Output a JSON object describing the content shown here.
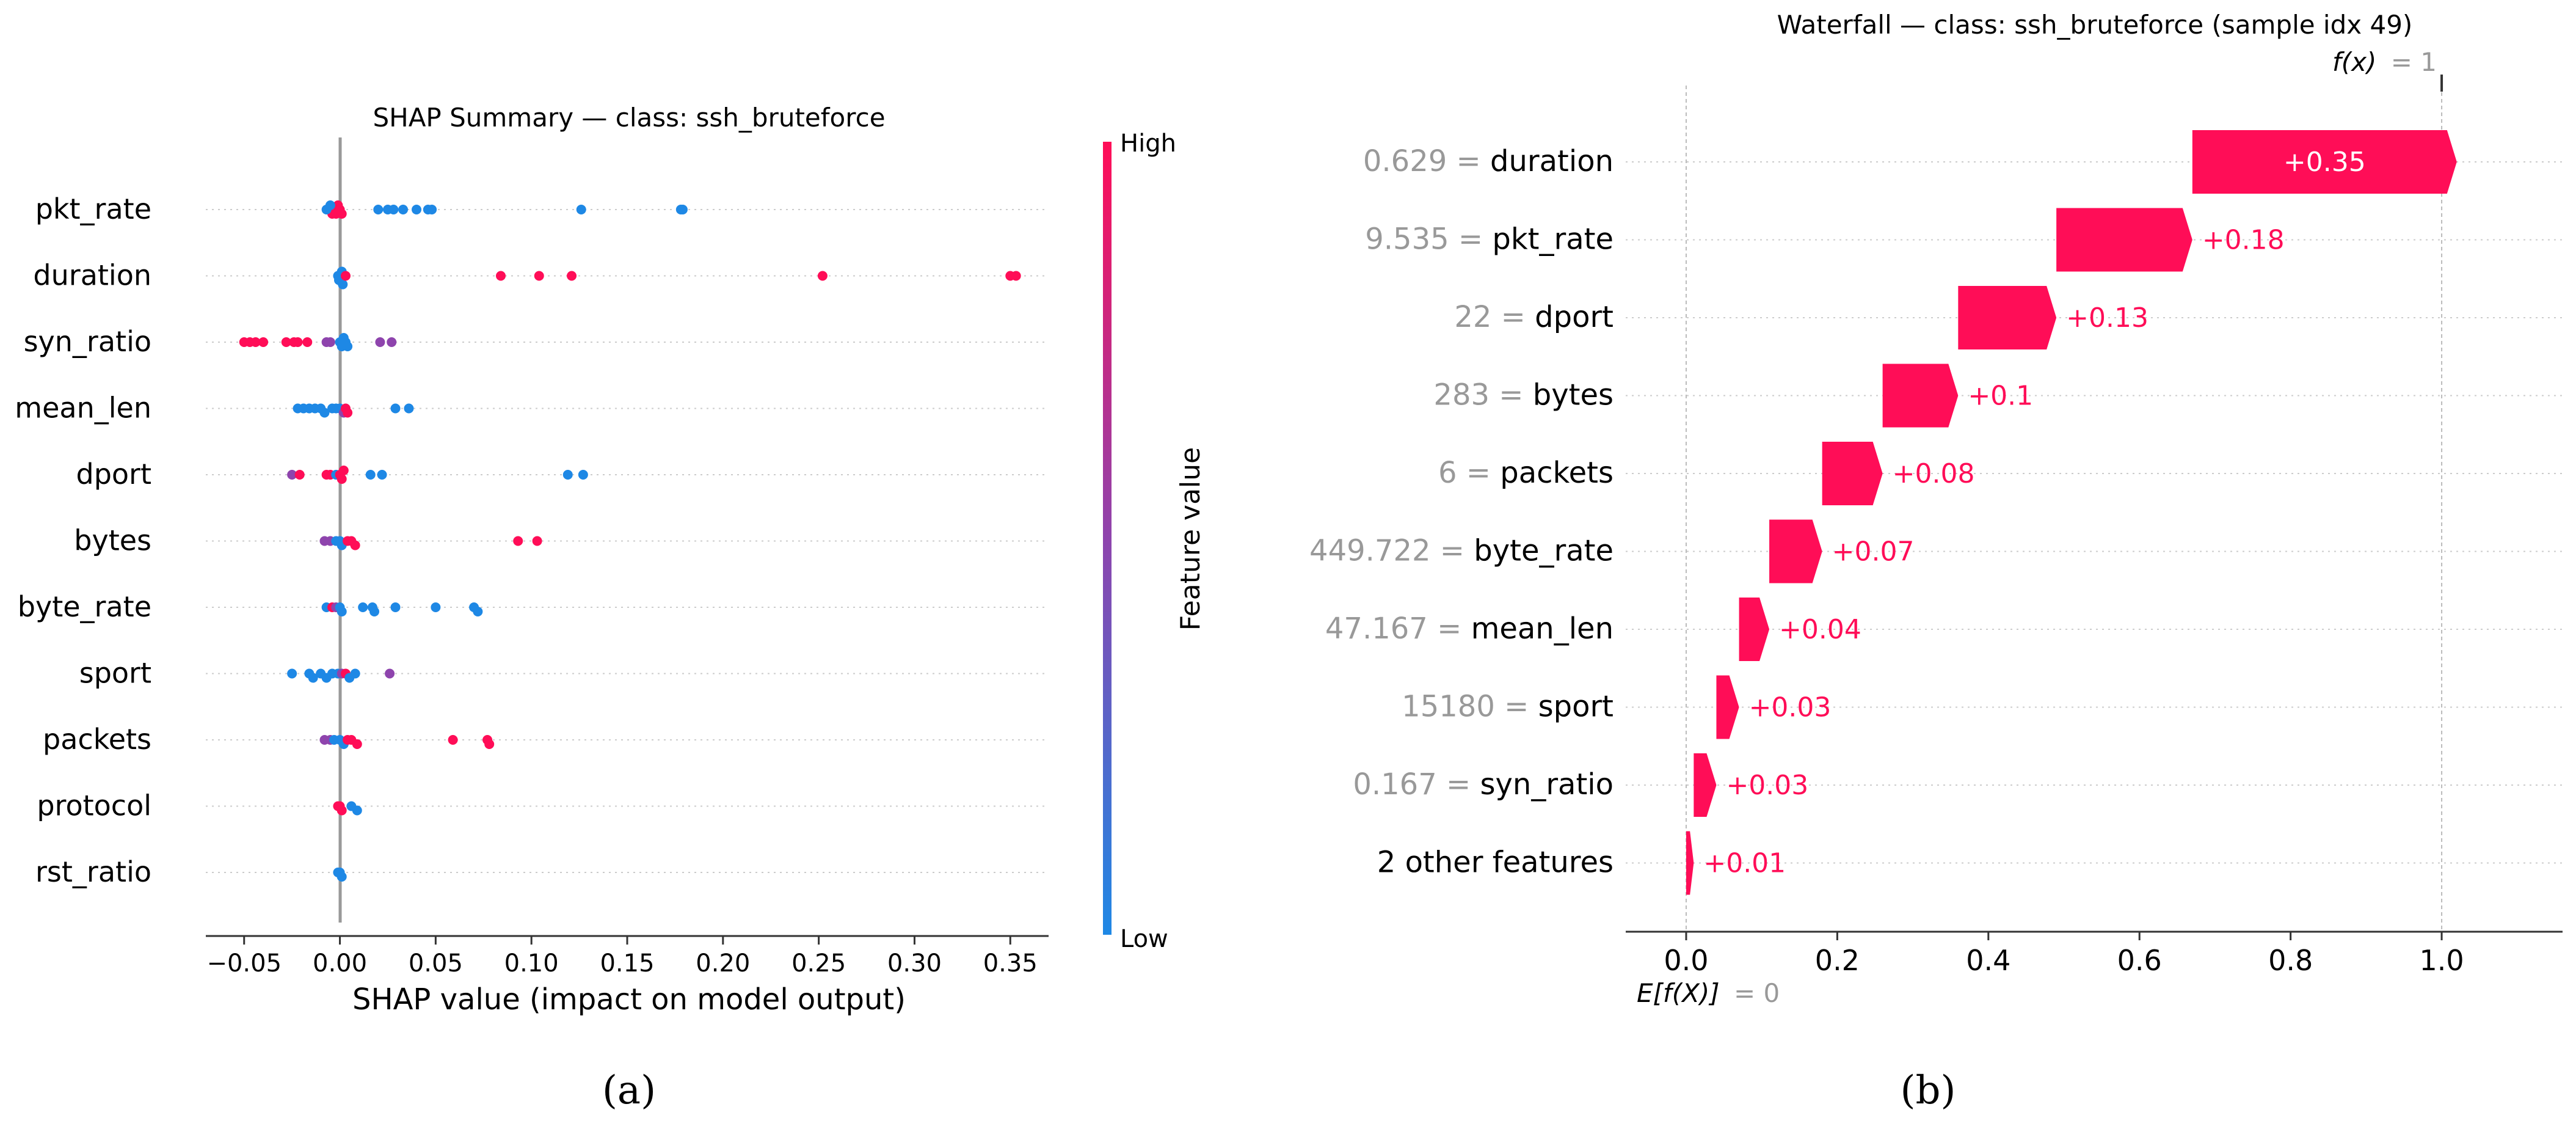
{
  "panel_labels": {
    "a": "(a)",
    "b": "(b)"
  },
  "summary_axis_title": "SHAP value (impact on model output)",
  "waterfall_expected": "E[f(X)]",
  "waterfall_expected_value": "= 0",
  "waterfall_fx": "f(x)",
  "waterfall_fx_value": "= 1",
  "colorbar": {
    "high": "High",
    "low": "Low",
    "label": "Feature value"
  },
  "colors": {
    "positive": "#ff0d57",
    "negative": "#1e88e5",
    "purple": "#8e44ad",
    "axis": "#333333",
    "grid": "#cccccc"
  },
  "chart_data": [
    {
      "type": "scatter",
      "title": "SHAP Summary — class: ssh_bruteforce",
      "xlabel": "SHAP value (impact on model output)",
      "xlim": [
        -0.07,
        0.37
      ],
      "xticks": [
        "-0.05",
        "0.00",
        "0.05",
        "0.10",
        "0.15",
        "0.20",
        "0.25",
        "0.30",
        "0.35"
      ],
      "colorbar_labels": {
        "high": "High",
        "low": "Low",
        "title": "Feature value"
      },
      "features": [
        {
          "name": "pkt_rate",
          "points": [
            [
              -0.006,
              "r"
            ],
            [
              -0.004,
              "r"
            ],
            [
              -0.003,
              "r"
            ],
            [
              -0.002,
              "r"
            ],
            [
              -0.001,
              "r"
            ],
            [
              0.0,
              "r"
            ],
            [
              0.001,
              "r"
            ],
            [
              -0.005,
              "b"
            ],
            [
              -0.007,
              "b"
            ],
            [
              0.02,
              "b"
            ],
            [
              0.025,
              "b"
            ],
            [
              0.028,
              "b"
            ],
            [
              0.033,
              "b"
            ],
            [
              0.04,
              "b"
            ],
            [
              0.046,
              "b"
            ],
            [
              0.048,
              "b"
            ],
            [
              0.126,
              "b"
            ],
            [
              0.178,
              "b"
            ],
            [
              0.179,
              "b"
            ]
          ]
        },
        {
          "name": "duration",
          "points": [
            [
              -0.001,
              "b"
            ],
            [
              -0.0005,
              "b"
            ],
            [
              0.0,
              "b"
            ],
            [
              0.0005,
              "b"
            ],
            [
              0.001,
              "b"
            ],
            [
              0.0015,
              "b"
            ],
            [
              0.003,
              "r"
            ],
            [
              0.084,
              "r"
            ],
            [
              0.104,
              "r"
            ],
            [
              0.121,
              "r"
            ],
            [
              0.252,
              "r"
            ],
            [
              0.35,
              "r"
            ],
            [
              0.353,
              "r"
            ]
          ]
        },
        {
          "name": "syn_ratio",
          "points": [
            [
              -0.05,
              "r"
            ],
            [
              -0.047,
              "r"
            ],
            [
              -0.044,
              "r"
            ],
            [
              -0.04,
              "r"
            ],
            [
              -0.028,
              "r"
            ],
            [
              -0.024,
              "r"
            ],
            [
              -0.022,
              "r"
            ],
            [
              -0.017,
              "r"
            ],
            [
              -0.007,
              "p"
            ],
            [
              -0.005,
              "p"
            ],
            [
              0.0,
              "b"
            ],
            [
              0.001,
              "b"
            ],
            [
              0.002,
              "b"
            ],
            [
              0.003,
              "b"
            ],
            [
              0.004,
              "b"
            ],
            [
              0.021,
              "p"
            ],
            [
              0.027,
              "p"
            ]
          ]
        },
        {
          "name": "mean_len",
          "points": [
            [
              -0.022,
              "b"
            ],
            [
              -0.019,
              "b"
            ],
            [
              -0.016,
              "b"
            ],
            [
              -0.013,
              "b"
            ],
            [
              -0.01,
              "b"
            ],
            [
              -0.008,
              "b"
            ],
            [
              -0.004,
              "b"
            ],
            [
              -0.002,
              "b"
            ],
            [
              0.0,
              "b"
            ],
            [
              0.002,
              "p"
            ],
            [
              0.003,
              "r"
            ],
            [
              0.004,
              "r"
            ],
            [
              0.029,
              "b"
            ],
            [
              0.036,
              "b"
            ]
          ]
        },
        {
          "name": "dport",
          "points": [
            [
              -0.025,
              "p"
            ],
            [
              -0.021,
              "r"
            ],
            [
              -0.007,
              "r"
            ],
            [
              -0.005,
              "r"
            ],
            [
              -0.002,
              "b"
            ],
            [
              0.0,
              "r"
            ],
            [
              0.001,
              "r"
            ],
            [
              0.002,
              "r"
            ],
            [
              0.016,
              "b"
            ],
            [
              0.022,
              "b"
            ],
            [
              0.119,
              "b"
            ],
            [
              0.127,
              "b"
            ]
          ]
        },
        {
          "name": "bytes",
          "points": [
            [
              -0.008,
              "p"
            ],
            [
              -0.005,
              "p"
            ],
            [
              -0.002,
              "b"
            ],
            [
              0.0,
              "b"
            ],
            [
              0.001,
              "b"
            ],
            [
              0.004,
              "r"
            ],
            [
              0.006,
              "r"
            ],
            [
              0.008,
              "r"
            ],
            [
              0.093,
              "r"
            ],
            [
              0.103,
              "r"
            ]
          ]
        },
        {
          "name": "byte_rate",
          "points": [
            [
              -0.007,
              "b"
            ],
            [
              -0.004,
              "r"
            ],
            [
              -0.002,
              "p"
            ],
            [
              0.0,
              "b"
            ],
            [
              0.001,
              "b"
            ],
            [
              0.012,
              "b"
            ],
            [
              0.017,
              "b"
            ],
            [
              0.018,
              "b"
            ],
            [
              0.029,
              "b"
            ],
            [
              0.05,
              "b"
            ],
            [
              0.07,
              "b"
            ],
            [
              0.072,
              "b"
            ]
          ]
        },
        {
          "name": "sport",
          "points": [
            [
              -0.025,
              "b"
            ],
            [
              -0.016,
              "b"
            ],
            [
              -0.014,
              "b"
            ],
            [
              -0.01,
              "b"
            ],
            [
              -0.007,
              "b"
            ],
            [
              -0.004,
              "b"
            ],
            [
              -0.001,
              "b"
            ],
            [
              0.001,
              "p"
            ],
            [
              0.003,
              "r"
            ],
            [
              0.005,
              "b"
            ],
            [
              0.008,
              "b"
            ],
            [
              0.026,
              "p"
            ]
          ]
        },
        {
          "name": "packets",
          "points": [
            [
              -0.008,
              "p"
            ],
            [
              -0.005,
              "p"
            ],
            [
              -0.003,
              "b"
            ],
            [
              0.0,
              "b"
            ],
            [
              0.002,
              "b"
            ],
            [
              0.004,
              "r"
            ],
            [
              0.006,
              "r"
            ],
            [
              0.009,
              "r"
            ],
            [
              0.059,
              "r"
            ],
            [
              0.077,
              "r"
            ],
            [
              0.078,
              "r"
            ]
          ]
        },
        {
          "name": "protocol",
          "points": [
            [
              -0.001,
              "r"
            ],
            [
              0.0,
              "r"
            ],
            [
              0.001,
              "r"
            ],
            [
              0.006,
              "b"
            ],
            [
              0.009,
              "b"
            ]
          ]
        },
        {
          "name": "rst_ratio",
          "points": [
            [
              -0.001,
              "b"
            ],
            [
              0.0,
              "b"
            ],
            [
              0.001,
              "b"
            ]
          ]
        }
      ]
    },
    {
      "type": "bar",
      "subtype": "waterfall",
      "title": "Waterfall — class: ssh_bruteforce (sample idx 49)",
      "xlim": [
        -0.08,
        1.16
      ],
      "xticks": [
        "0.0",
        "0.2",
        "0.4",
        "0.6",
        "0.8",
        "1.0"
      ],
      "base_value": 0,
      "output_value": 1,
      "rows": [
        {
          "value": "0.629",
          "feature": "duration",
          "contribution": 0.35,
          "label": "+0.35"
        },
        {
          "value": "9.535",
          "feature": "pkt_rate",
          "contribution": 0.18,
          "label": "+0.18"
        },
        {
          "value": "22",
          "feature": "dport",
          "contribution": 0.13,
          "label": "+0.13"
        },
        {
          "value": "283",
          "feature": "bytes",
          "contribution": 0.1,
          "label": "+0.1"
        },
        {
          "value": "6",
          "feature": "packets",
          "contribution": 0.08,
          "label": "+0.08"
        },
        {
          "value": "449.722",
          "feature": "byte_rate",
          "contribution": 0.07,
          "label": "+0.07"
        },
        {
          "value": "47.167",
          "feature": "mean_len",
          "contribution": 0.04,
          "label": "+0.04"
        },
        {
          "value": "15180",
          "feature": "sport",
          "contribution": 0.03,
          "label": "+0.03"
        },
        {
          "value": "0.167",
          "feature": "syn_ratio",
          "contribution": 0.03,
          "label": "+0.03"
        },
        {
          "value": "",
          "feature": "2 other features",
          "contribution": 0.01,
          "label": "+0.01"
        }
      ]
    }
  ]
}
